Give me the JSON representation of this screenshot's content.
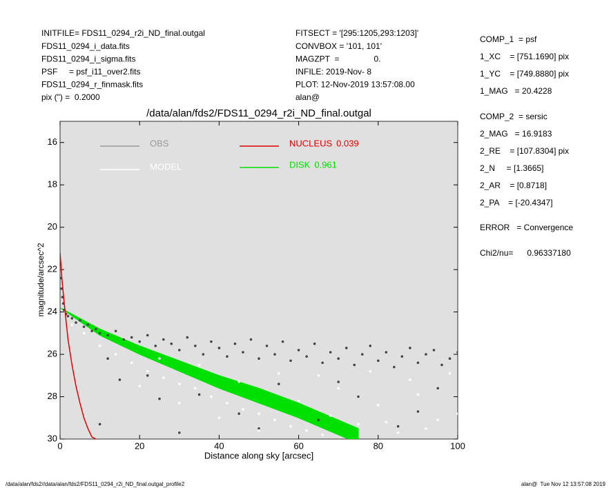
{
  "header_left": [
    "INITFILE= FDS11_0294_r2i_ND_final.outgal",
    "FDS11_0294_i_data.fits",
    "FDS11_0294_i_sigma.fits",
    "PSF     = psf_i11_over2.fits",
    "FDS11_0294_r_finmask.fits",
    "pix (\") =  0.2000"
  ],
  "header_middle": [
    "FITSECT = '[295:1205,293:1203]'",
    "CONVBOX = '101, 101'",
    "MAGZPT  =               0.",
    "INFILE: 2019-Nov- 8",
    "PLOT: 12-Nov-2019 13:57:08.00",
    "alan@"
  ],
  "header_right": [
    [
      "COMP_1  = psf",
      "1_XC    = [751.1690] pix",
      "1_YC    = [749.8880] pix",
      "1_MAG   = 20.4228"
    ],
    [
      "COMP_2  = sersic",
      "2_MAG   = 16.9183",
      "2_RE    = [107.8304] pix",
      "2_N     = [1.3665]",
      "2_AR    = [0.8718]",
      "2_PA    = [-20.4347]"
    ],
    [
      "ERROR   = Convergence"
    ],
    [
      "Chi2/nu=      0.96337180"
    ]
  ],
  "footer_left": "/data/alan/fds2//data/alan/fds2/FDS11_0294_r2i_ND_final.outgal_profile2",
  "footer_right": "alan@  Tue Nov 12 13:57:08 2019",
  "chart_data": {
    "type": "scatter",
    "title": "/data/alan/fds2/FDS11_0294_r2i_ND_final.outgal",
    "xlabel": "Distance along sky [arcsec]",
    "ylabel": "magnitude/arcsec^2",
    "xlim": [
      0,
      100
    ],
    "ylim": [
      15,
      30
    ],
    "y_inverted": true,
    "xticks": [
      0,
      20,
      40,
      60,
      80,
      100
    ],
    "yticks": [
      16,
      18,
      20,
      22,
      24,
      26,
      28,
      30
    ],
    "background": "#e0e0e0",
    "series": [
      {
        "name": "OBS",
        "style": "points",
        "color": "#444444",
        "legend_color": "#999999",
        "x": [
          0.2,
          0.4,
          0.6,
          0.8,
          1,
          1.5,
          2,
          3,
          4,
          5,
          6,
          7,
          8,
          9,
          10,
          12,
          14,
          16,
          18,
          20,
          22,
          24,
          26,
          28,
          30,
          32,
          34,
          36,
          38,
          40,
          42,
          44,
          46,
          48,
          50,
          52,
          54,
          56,
          58,
          60,
          62,
          64,
          66,
          68,
          70,
          72,
          74,
          76,
          78,
          80,
          82,
          84,
          86,
          88,
          90,
          92,
          94,
          96,
          98,
          100,
          15,
          25,
          35,
          45,
          55,
          65,
          75,
          85,
          95,
          10,
          30,
          50,
          12,
          22,
          70,
          90
        ],
        "values": [
          22.4,
          22.9,
          23.3,
          23.6,
          23.9,
          24.1,
          24.2,
          24.3,
          24.5,
          24.4,
          24.7,
          24.6,
          24.9,
          24.8,
          25.0,
          25.1,
          24.9,
          25.3,
          25.2,
          25.4,
          25.1,
          25.6,
          25.3,
          25.5,
          25.8,
          25.2,
          25.6,
          26.0,
          25.4,
          25.7,
          26.1,
          25.5,
          25.9,
          25.3,
          26.2,
          25.6,
          26.0,
          25.4,
          26.3,
          25.8,
          26.1,
          25.5,
          26.4,
          25.9,
          26.2,
          25.7,
          26.5,
          26.0,
          25.6,
          26.3,
          25.9,
          26.6,
          26.1,
          25.7,
          26.4,
          26.0,
          25.8,
          26.5,
          26.2,
          25.9,
          27.2,
          28.1,
          27.9,
          28.8,
          27.4,
          29.1,
          28.0,
          29.4,
          27.6,
          29.3,
          29.7,
          29.5,
          26.2,
          27.0,
          27.3,
          28.7
        ]
      },
      {
        "name": "MODEL",
        "style": "points",
        "color": "#ffffff",
        "legend_color": "#ffffff",
        "x": [
          3,
          6,
          10,
          14,
          18,
          22,
          26,
          30,
          34,
          38,
          42,
          46,
          50,
          54,
          58,
          62,
          66,
          20,
          30,
          40,
          50,
          60,
          70,
          80,
          90,
          100,
          75,
          85,
          95,
          65,
          78,
          88,
          98,
          45,
          35,
          25,
          55,
          68,
          82,
          92
        ],
        "values": [
          24.6,
          25.0,
          25.6,
          26.0,
          26.4,
          26.8,
          27.1,
          27.4,
          27.6,
          28.0,
          28.3,
          28.6,
          28.8,
          29.1,
          29.4,
          29.6,
          29.8,
          27.5,
          28.3,
          29.0,
          29.6,
          28.2,
          27.6,
          28.4,
          27.9,
          28.8,
          29.3,
          29.7,
          29.1,
          27.0,
          26.8,
          27.2,
          26.9,
          27.3,
          26.5,
          26.2,
          26.9,
          28.9,
          29.2,
          29.5
        ]
      },
      {
        "name": "NUCLEUS",
        "fraction": 0.039,
        "style": "line",
        "color": "#e00000",
        "x": [
          0,
          0.5,
          1,
          1.5,
          2,
          3,
          4,
          5,
          6,
          7,
          8,
          9
        ],
        "values": [
          21.2,
          22.5,
          23.5,
          24.4,
          25.3,
          26.5,
          27.5,
          28.3,
          29.0,
          29.5,
          29.9,
          30.0
        ]
      },
      {
        "name": "DISK",
        "fraction": 0.961,
        "style": "band",
        "color": "#00e000",
        "x": [
          0,
          10,
          20,
          30,
          40,
          50,
          60,
          70,
          75
        ],
        "values": [
          23.8,
          24.8,
          25.6,
          26.3,
          27.0,
          27.6,
          28.3,
          29.1,
          29.5
        ],
        "values_low": [
          23.8,
          25.1,
          26.0,
          26.8,
          27.6,
          28.3,
          29.0,
          29.8,
          30.2
        ]
      }
    ]
  }
}
